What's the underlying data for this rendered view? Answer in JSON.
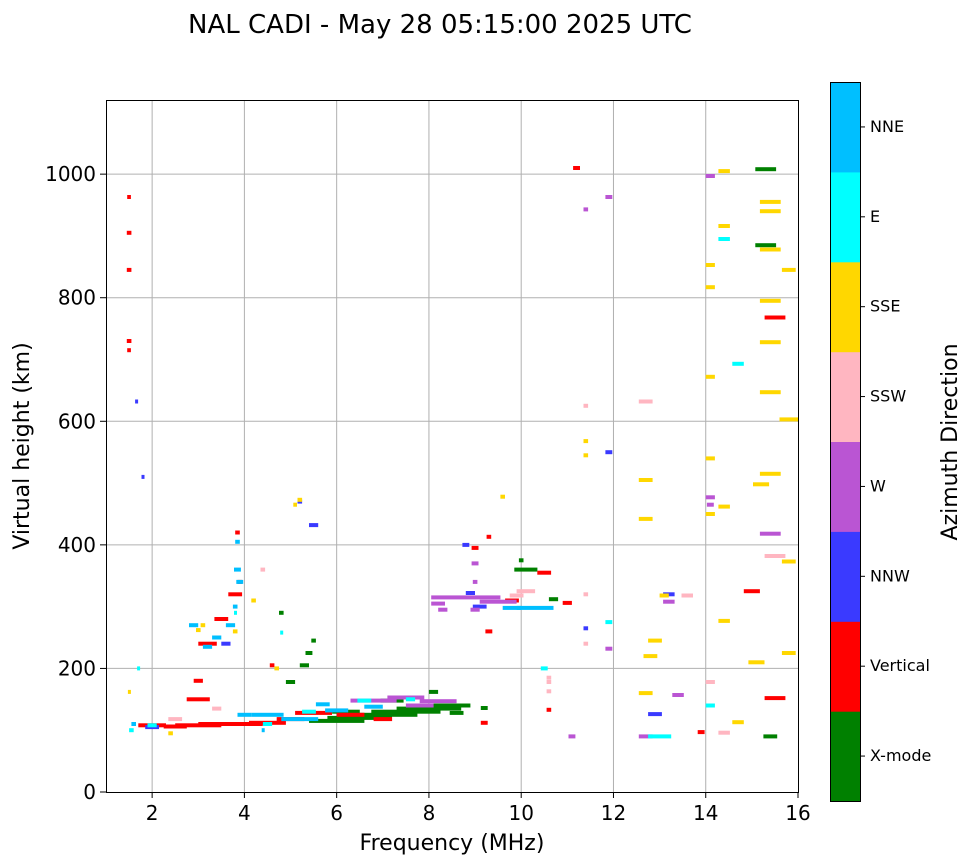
{
  "chart_data": {
    "type": "scatter",
    "title": "NAL CADI - May 28 05:15:00 2025 UTC",
    "xlabel": "Frequency (MHz)",
    "ylabel": "Virtual height (km)",
    "xlim": [
      1,
      16
    ],
    "ylim": [
      0,
      1120
    ],
    "xticks": [
      "2",
      "4",
      "6",
      "8",
      "10",
      "12",
      "14",
      "16"
    ],
    "yticks": [
      "0",
      "200",
      "400",
      "600",
      "800",
      "1000"
    ],
    "xtick_values": [
      2,
      4,
      6,
      8,
      10,
      12,
      14,
      16
    ],
    "ytick_values": [
      0,
      200,
      400,
      600,
      800,
      1000
    ],
    "grid": true,
    "colorbar": {
      "label": "Azimuth Direction",
      "categories": [
        {
          "name": "X-mode",
          "color": "#008000"
        },
        {
          "name": "Vertical",
          "color": "#ff0000"
        },
        {
          "name": "NNW",
          "color": "#3a3aff"
        },
        {
          "name": "W",
          "color": "#ba55d3"
        },
        {
          "name": "SSW",
          "color": "#ffb6c1"
        },
        {
          "name": "SSE",
          "color": "#ffd700"
        },
        {
          "name": "E",
          "color": "#00ffff"
        },
        {
          "name": "NNE",
          "color": "#00bfff"
        }
      ]
    },
    "series": [
      {
        "name": "X-mode",
        "points": [
          [
            6.0,
            115,
            1.2
          ],
          [
            6.5,
            120,
            1.4
          ],
          [
            7.0,
            125,
            1.5
          ],
          [
            7.5,
            130,
            1.5
          ],
          [
            8.0,
            135,
            1.4
          ],
          [
            8.5,
            140,
            0.8
          ],
          [
            8.6,
            128,
            0.3
          ],
          [
            6.2,
            130,
            0.6
          ],
          [
            7.2,
            148,
            0.5
          ],
          [
            7.7,
            153,
            0.3
          ],
          [
            8.1,
            162,
            0.2
          ],
          [
            5.0,
            178,
            0.2
          ],
          [
            5.3,
            205,
            0.2
          ],
          [
            5.4,
            225,
            0.15
          ],
          [
            5.5,
            245,
            0.1
          ],
          [
            4.8,
            290,
            0.1
          ],
          [
            10.0,
            375,
            0.1
          ],
          [
            10.1,
            360,
            0.5
          ],
          [
            10.7,
            312,
            0.2
          ],
          [
            15.3,
            1008,
            0.45
          ],
          [
            15.3,
            885,
            0.45
          ],
          [
            15.4,
            90,
            0.3
          ],
          [
            9.2,
            136,
            0.15
          ]
        ]
      },
      {
        "name": "Vertical",
        "points": [
          [
            1.5,
            963,
            0.08
          ],
          [
            1.5,
            905,
            0.1
          ],
          [
            1.5,
            845,
            0.1
          ],
          [
            1.5,
            730,
            0.1
          ],
          [
            1.5,
            715,
            0.08
          ],
          [
            2.0,
            108,
            0.6
          ],
          [
            2.5,
            106,
            0.5
          ],
          [
            3.0,
            108,
            1.0
          ],
          [
            3.5,
            110,
            1.0
          ],
          [
            4.0,
            110,
            0.8
          ],
          [
            4.5,
            112,
            0.8
          ],
          [
            5.0,
            118,
            0.6
          ],
          [
            5.5,
            128,
            0.8
          ],
          [
            6.3,
            125,
            0.6
          ],
          [
            7.0,
            118,
            0.4
          ],
          [
            3.0,
            150,
            0.5
          ],
          [
            3.2,
            240,
            0.4
          ],
          [
            3.5,
            280,
            0.3
          ],
          [
            3.8,
            320,
            0.3
          ],
          [
            3.9,
            340,
            0.1
          ],
          [
            3.85,
            420,
            0.1
          ],
          [
            4.6,
            205,
            0.1
          ],
          [
            3.0,
            180,
            0.2
          ],
          [
            9.3,
            260,
            0.15
          ],
          [
            9.0,
            395,
            0.15
          ],
          [
            10.5,
            355,
            0.3
          ],
          [
            11.2,
            1010,
            0.15
          ],
          [
            9.2,
            112,
            0.15
          ],
          [
            10.6,
            133,
            0.1
          ],
          [
            13.9,
            97,
            0.15
          ],
          [
            15.0,
            325,
            0.35
          ],
          [
            15.5,
            768,
            0.45
          ],
          [
            15.5,
            152,
            0.45
          ],
          [
            11.0,
            306,
            0.2
          ],
          [
            9.8,
            310,
            0.3
          ],
          [
            9.3,
            413,
            0.1
          ]
        ]
      },
      {
        "name": "NNW",
        "points": [
          [
            1.65,
            632,
            0.04
          ],
          [
            1.8,
            510,
            0.06
          ],
          [
            5.5,
            432,
            0.2
          ],
          [
            5.2,
            470,
            0.1
          ],
          [
            8.8,
            400,
            0.15
          ],
          [
            11.4,
            265,
            0.1
          ],
          [
            11.9,
            550,
            0.15
          ],
          [
            12.9,
            126,
            0.3
          ],
          [
            13.2,
            320,
            0.25
          ],
          [
            2.0,
            105,
            0.3
          ],
          [
            3.6,
            240,
            0.2
          ],
          [
            9.1,
            300,
            0.3
          ],
          [
            8.9,
            322,
            0.2
          ]
        ]
      },
      {
        "name": "W",
        "points": [
          [
            8.8,
            315,
            1.5
          ],
          [
            9.5,
            308,
            0.8
          ],
          [
            8.2,
            305,
            0.3
          ],
          [
            8.3,
            295,
            0.2
          ],
          [
            9.0,
            295,
            0.2
          ],
          [
            6.8,
            148,
            1.0
          ],
          [
            7.5,
            153,
            0.8
          ],
          [
            8.2,
            147,
            0.8
          ],
          [
            7.8,
            140,
            0.6
          ],
          [
            11.4,
            943,
            0.1
          ],
          [
            11.9,
            963,
            0.15
          ],
          [
            11.9,
            232,
            0.15
          ],
          [
            12.7,
            90,
            0.3
          ],
          [
            13.2,
            308,
            0.25
          ],
          [
            13.4,
            157,
            0.25
          ],
          [
            14.1,
            997,
            0.2
          ],
          [
            14.1,
            477,
            0.2
          ],
          [
            14.1,
            465,
            0.15
          ],
          [
            15.4,
            418,
            0.45
          ],
          [
            11.1,
            90,
            0.15
          ],
          [
            9.0,
            370,
            0.15
          ],
          [
            9.0,
            340,
            0.1
          ]
        ]
      },
      {
        "name": "SSW",
        "points": [
          [
            11.4,
            625,
            0.1
          ],
          [
            12.7,
            632,
            0.3
          ],
          [
            13.6,
            318,
            0.25
          ],
          [
            14.1,
            178,
            0.2
          ],
          [
            14.4,
            96,
            0.25
          ],
          [
            15.5,
            382,
            0.45
          ],
          [
            10.1,
            325,
            0.4
          ],
          [
            9.9,
            318,
            0.3
          ],
          [
            2.5,
            118,
            0.3
          ],
          [
            3.4,
            135,
            0.2
          ],
          [
            4.4,
            360,
            0.1
          ],
          [
            10.6,
            163,
            0.1
          ],
          [
            10.6,
            185,
            0.1
          ],
          [
            10.6,
            178,
            0.1
          ],
          [
            11.4,
            240,
            0.1
          ],
          [
            11.4,
            320,
            0.1
          ]
        ]
      },
      {
        "name": "SSE",
        "points": [
          [
            5.2,
            473,
            0.1
          ],
          [
            5.1,
            465,
            0.08
          ],
          [
            9.6,
            478,
            0.1
          ],
          [
            11.4,
            568,
            0.1
          ],
          [
            11.4,
            545,
            0.1
          ],
          [
            12.7,
            505,
            0.3
          ],
          [
            12.7,
            442,
            0.3
          ],
          [
            12.8,
            220,
            0.3
          ],
          [
            12.7,
            160,
            0.3
          ],
          [
            13.1,
            318,
            0.2
          ],
          [
            14.1,
            853,
            0.2
          ],
          [
            14.1,
            817,
            0.2
          ],
          [
            14.1,
            672,
            0.2
          ],
          [
            14.1,
            540,
            0.2
          ],
          [
            14.1,
            450,
            0.2
          ],
          [
            14.4,
            1005,
            0.25
          ],
          [
            14.4,
            916,
            0.25
          ],
          [
            14.4,
            462,
            0.25
          ],
          [
            14.4,
            277,
            0.25
          ],
          [
            14.7,
            113,
            0.25
          ],
          [
            15.2,
            498,
            0.35
          ],
          [
            15.4,
            955,
            0.45
          ],
          [
            15.4,
            940,
            0.45
          ],
          [
            15.4,
            878,
            0.45
          ],
          [
            15.4,
            795,
            0.45
          ],
          [
            15.4,
            728,
            0.45
          ],
          [
            15.4,
            647,
            0.45
          ],
          [
            15.4,
            515,
            0.45
          ],
          [
            15.1,
            210,
            0.35
          ],
          [
            15.8,
            845,
            0.3
          ],
          [
            15.8,
            603,
            0.4
          ],
          [
            15.8,
            373,
            0.3
          ],
          [
            15.8,
            225,
            0.3
          ],
          [
            3.0,
            262,
            0.1
          ],
          [
            3.1,
            270,
            0.1
          ],
          [
            4.2,
            310,
            0.1
          ],
          [
            4.7,
            200,
            0.1
          ],
          [
            1.5,
            162,
            0.05
          ],
          [
            2.4,
            95,
            0.1
          ],
          [
            3.8,
            260,
            0.1
          ],
          [
            12.9,
            245,
            0.3
          ]
        ]
      },
      {
        "name": "E",
        "points": [
          [
            3.8,
            290,
            0.05
          ],
          [
            4.8,
            258,
            0.05
          ],
          [
            10.5,
            200,
            0.15
          ],
          [
            11.9,
            275,
            0.15
          ],
          [
            13.0,
            90,
            0.5
          ],
          [
            14.1,
            140,
            0.2
          ],
          [
            14.4,
            895,
            0.25
          ],
          [
            14.7,
            693,
            0.25
          ],
          [
            2.0,
            108,
            0.2
          ],
          [
            5.4,
            130,
            0.3
          ],
          [
            6.6,
            148,
            0.3
          ],
          [
            7.6,
            150,
            0.2
          ],
          [
            1.7,
            200,
            0.05
          ],
          [
            1.55,
            100,
            0.1
          ],
          [
            4.5,
            110,
            0.2
          ]
        ]
      },
      {
        "name": "NNE",
        "points": [
          [
            3.9,
            340,
            0.15
          ],
          [
            3.8,
            300,
            0.1
          ],
          [
            3.7,
            270,
            0.2
          ],
          [
            3.4,
            250,
            0.2
          ],
          [
            3.85,
            360,
            0.15
          ],
          [
            3.85,
            405,
            0.1
          ],
          [
            4.5,
            125,
            0.7
          ],
          [
            5.2,
            118,
            0.8
          ],
          [
            4.0,
            125,
            0.3
          ],
          [
            10.3,
            298,
            0.8
          ],
          [
            9.8,
            298,
            0.4
          ],
          [
            3.2,
            235,
            0.2
          ],
          [
            2.9,
            270,
            0.2
          ],
          [
            1.6,
            110,
            0.1
          ],
          [
            4.4,
            100,
            0.05
          ],
          [
            6.0,
            132,
            0.5
          ],
          [
            6.8,
            138,
            0.4
          ],
          [
            5.7,
            142,
            0.3
          ]
        ]
      }
    ]
  }
}
